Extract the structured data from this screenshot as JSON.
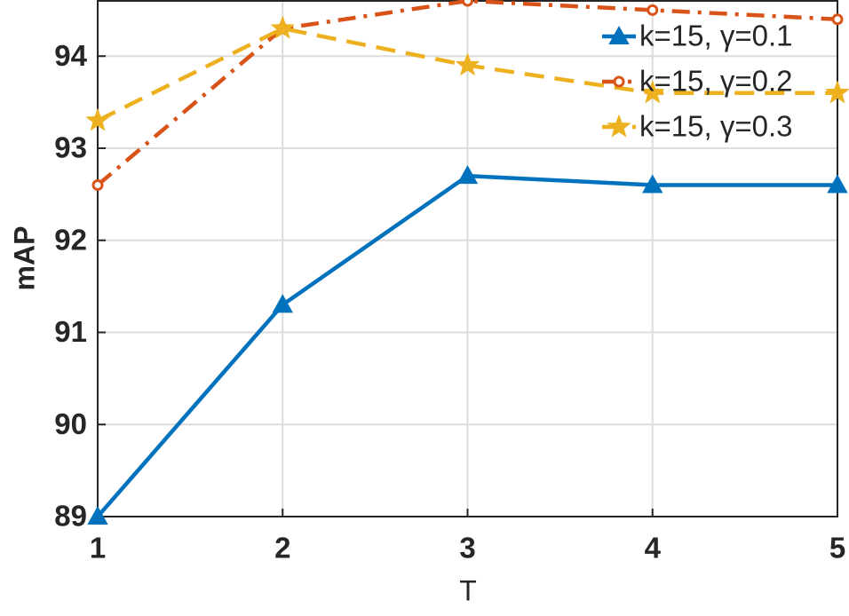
{
  "chart_data": {
    "type": "line",
    "x_label": "T",
    "y_label": "mAP",
    "x": [
      1,
      2,
      3,
      4,
      5
    ],
    "xlim": [
      1,
      5
    ],
    "xticks": [
      1,
      2,
      3,
      4,
      5
    ],
    "ylim": [
      89,
      94.6
    ],
    "yticks": [
      89,
      90,
      91,
      92,
      93,
      94
    ],
    "grid": true,
    "legend": "top-right",
    "series": [
      {
        "name": "k=15, γ=0.1",
        "color": "#0072BD",
        "line_style": "solid",
        "marker": "triangle",
        "values": [
          89,
          91.3,
          92.7,
          92.6,
          92.6
        ]
      },
      {
        "name": "k=15, γ=0.2",
        "color": "#D95319",
        "line_style": "dash-dot",
        "marker": "circle",
        "values": [
          92.6,
          94.3,
          94.6,
          94.5,
          94.4
        ]
      },
      {
        "name": "k=15, γ=0.3",
        "color": "#EDB120",
        "line_style": "dashed",
        "marker": "star",
        "values": [
          93.3,
          94.3,
          93.9,
          93.6,
          93.6
        ]
      }
    ]
  }
}
